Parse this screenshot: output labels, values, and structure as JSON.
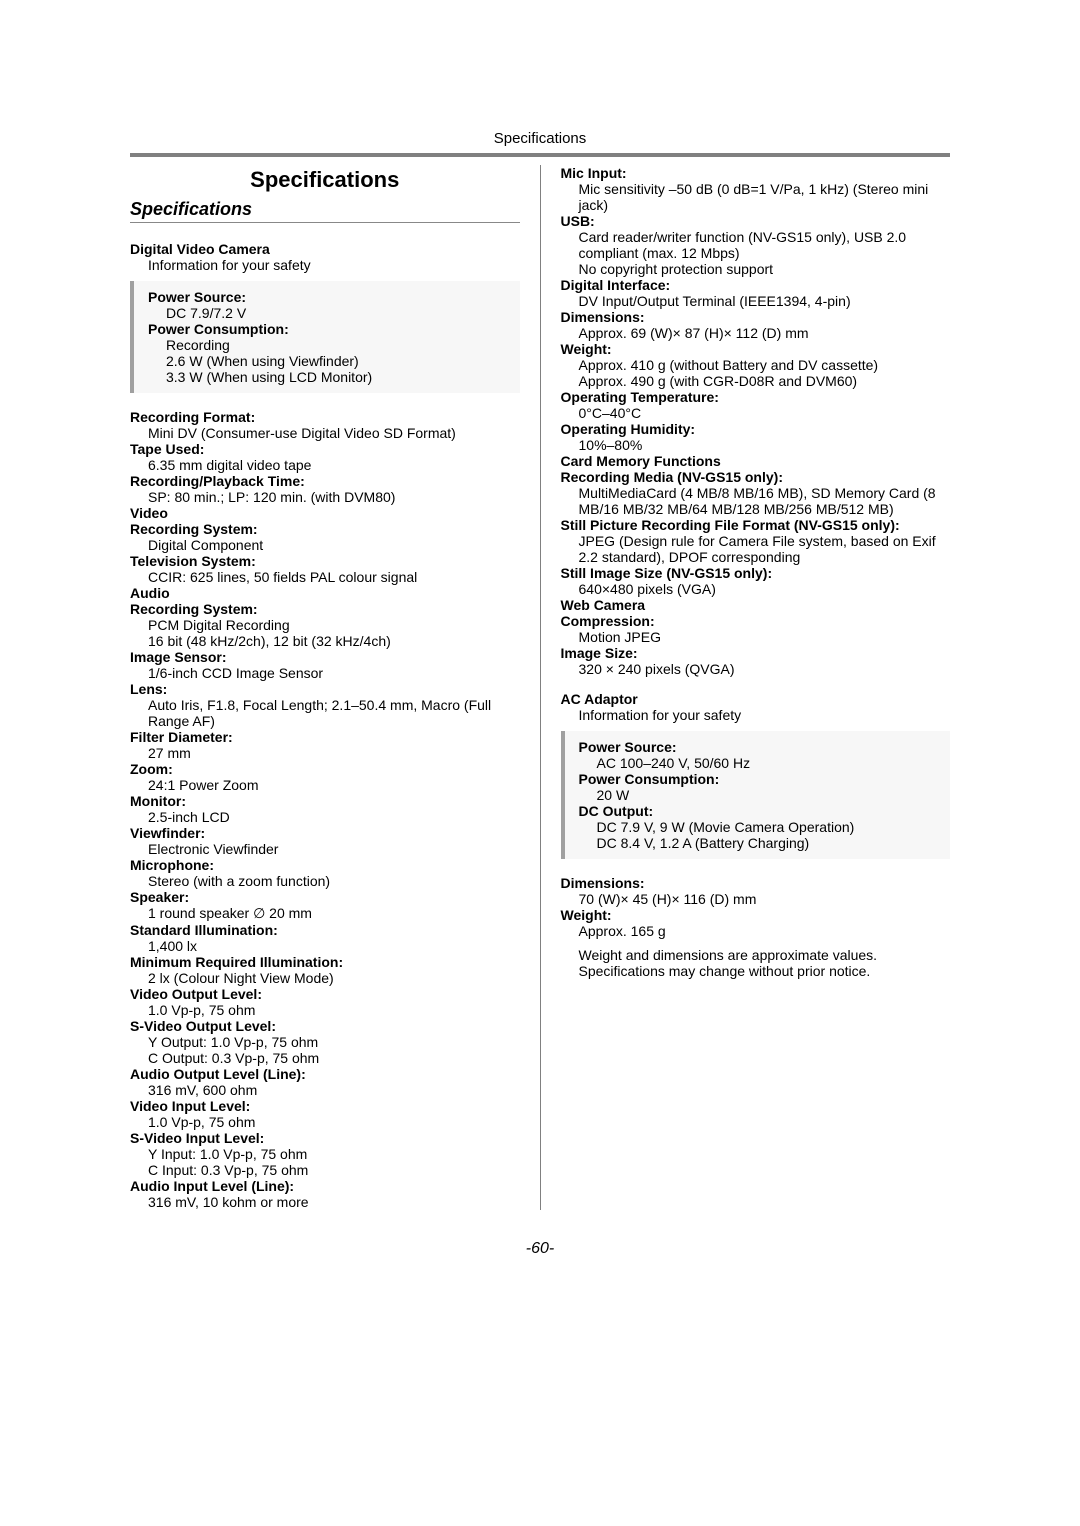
{
  "header": "Specifications",
  "title": "Specifications",
  "subtitle": "Specifications",
  "pageNumber": "-60-",
  "colors": {
    "text": "#000000",
    "rule": "#808080",
    "boxBorder": "#a0a0a0",
    "boxBg": "#f7f7f7",
    "bg": "#ffffff"
  },
  "typography": {
    "body_pt": 14,
    "title_pt": 22,
    "subtitle_pt": 18,
    "pagenum_pt": 16
  },
  "leftCol": {
    "product1": {
      "name": "Digital Video Camera",
      "note": "Information for your safety"
    },
    "box1": [
      {
        "label": "Power Source:",
        "value": "DC 7.9/7.2 V"
      },
      {
        "label": "Power Consumption:",
        "values": [
          "Recording",
          "2.6 W (When using Viewfinder)",
          "3.3 W (When using LCD Monitor)"
        ]
      }
    ],
    "specs": [
      {
        "label": "Recording Format:",
        "value": "Mini DV (Consumer-use Digital Video SD Format)"
      },
      {
        "label": "Tape Used:",
        "value": "6.35 mm digital video tape"
      },
      {
        "label": "Recording/Playback Time:",
        "value": "SP: 80 min.; LP: 120 min. (with DVM80)"
      },
      {
        "label": "Video",
        "cat": true
      },
      {
        "label": "Recording System:",
        "value": "Digital Component"
      },
      {
        "label": "Television System:",
        "value": "CCIR: 625 lines, 50 fields PAL colour signal"
      },
      {
        "label": "Audio",
        "cat": true
      },
      {
        "label": "Recording System:",
        "values": [
          "PCM Digital Recording",
          "16 bit (48 kHz/2ch), 12 bit (32 kHz/4ch)"
        ]
      },
      {
        "label": "Image Sensor:",
        "value": "1/6-inch CCD Image Sensor"
      },
      {
        "label": "Lens:",
        "value": "Auto Iris, F1.8, Focal Length; 2.1–50.4 mm, Macro (Full Range AF)"
      },
      {
        "label": "Filter Diameter:",
        "value": "27 mm"
      },
      {
        "label": "Zoom:",
        "value": "24:1 Power Zoom"
      },
      {
        "label": "Monitor:",
        "value": "2.5-inch LCD"
      },
      {
        "label": "Viewfinder:",
        "value": "Electronic Viewfinder"
      },
      {
        "label": "Microphone:",
        "value": "Stereo (with a zoom function)"
      },
      {
        "label": "Speaker:",
        "value": "1 round speaker ∅ 20 mm"
      },
      {
        "label": "Standard Illumination:",
        "value": "1,400 lx"
      },
      {
        "label": "Minimum Required Illumination:",
        "value": "2 lx (Colour Night View Mode)"
      },
      {
        "label": "Video Output Level:",
        "value": "1.0 Vp-p, 75 ohm"
      },
      {
        "label": "S-Video Output Level:",
        "values": [
          "Y Output: 1.0 Vp-p, 75 ohm",
          "C Output: 0.3 Vp-p, 75 ohm"
        ]
      },
      {
        "label": "Audio Output Level (Line):",
        "value": "316 mV, 600 ohm"
      },
      {
        "label": "Video Input Level:",
        "value": "1.0 Vp-p, 75 ohm"
      },
      {
        "label": "S-Video Input Level:",
        "values": [
          "Y Input: 1.0 Vp-p, 75 ohm",
          "C Input: 0.3 Vp-p, 75 ohm"
        ]
      },
      {
        "label": "Audio Input Level (Line):",
        "value": "316 mV, 10 kohm or more"
      }
    ]
  },
  "rightCol": {
    "specs1": [
      {
        "label": "Mic Input:",
        "value": "Mic sensitivity –50 dB (0 dB=1 V/Pa, 1 kHz) (Stereo mini jack)"
      },
      {
        "label": "USB:",
        "values": [
          "Card reader/writer function (NV-GS15 only), USB 2.0 compliant (max. 12 Mbps)",
          "No copyright protection support"
        ]
      },
      {
        "label": "Digital Interface:",
        "value": "DV Input/Output Terminal (IEEE1394, 4-pin)"
      },
      {
        "label": "Dimensions:",
        "value": "Approx. 69 (W)× 87 (H)× 112 (D) mm"
      },
      {
        "label": "Weight:",
        "values": [
          "Approx. 410 g (without Battery and DV cassette)",
          "Approx. 490 g (with CGR-D08R and DVM60)"
        ]
      },
      {
        "label": "Operating Temperature:",
        "value": "0°C–40°C"
      },
      {
        "label": "Operating Humidity:",
        "value": "10%–80%"
      },
      {
        "label": "Card Memory Functions",
        "cat": true
      },
      {
        "label": "Recording Media (NV-GS15 only):",
        "value": "MultiMediaCard (4 MB/8 MB/16 MB), SD Memory Card (8 MB/16 MB/32 MB/64 MB/128 MB/256 MB/512 MB)"
      },
      {
        "label": "Still Picture Recording File Format (NV-GS15 only):",
        "value": "JPEG (Design rule for Camera File system, based on Exif 2.2 standard), DPOF corresponding"
      },
      {
        "label": "Still Image Size (NV-GS15 only):",
        "value": "640×480 pixels (VGA)"
      },
      {
        "label": "Web Camera",
        "cat": true
      },
      {
        "label": "Compression:",
        "value": "Motion JPEG"
      },
      {
        "label": "Image Size:",
        "value": "320 × 240 pixels (QVGA)"
      }
    ],
    "product2": {
      "name": "AC Adaptor",
      "note": "Information for your safety"
    },
    "box2": [
      {
        "label": "Power Source:",
        "value": "AC 100–240 V, 50/60 Hz"
      },
      {
        "label": "Power Consumption:",
        "value": "20 W"
      },
      {
        "label": "DC Output:",
        "values": [
          "DC 7.9 V, 9 W (Movie Camera Operation)",
          "DC 8.4 V, 1.2 A (Battery Charging)"
        ]
      }
    ],
    "specs2": [
      {
        "label": "Dimensions:",
        "value": "70 (W)× 45 (H)× 116 (D) mm"
      },
      {
        "label": "Weight:",
        "value": "Approx. 165 g"
      }
    ],
    "footnote": "Weight and dimensions are approximate values. Specifications may change without prior notice."
  }
}
